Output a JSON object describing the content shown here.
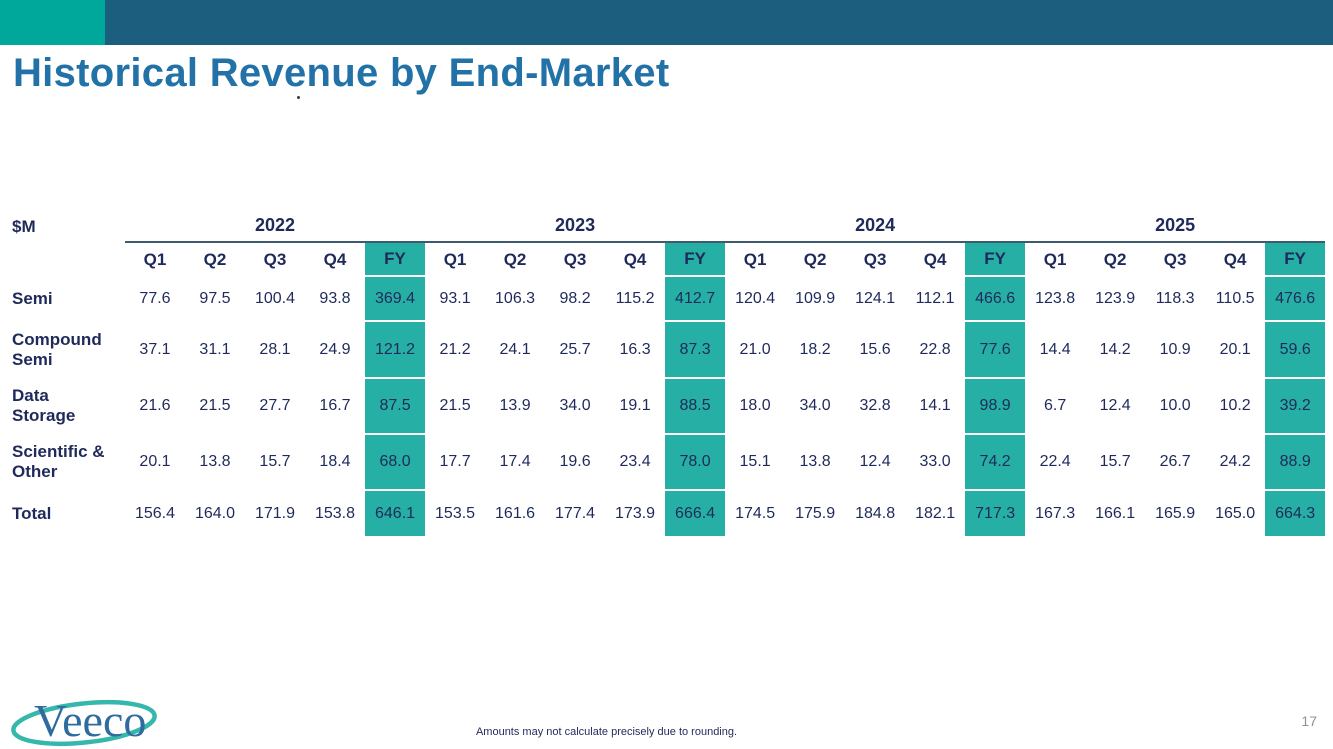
{
  "slide": {
    "title": "Historical Revenue by End-Market",
    "footnote": "Amounts may not calculate precisely due to rounding.",
    "page_number": "17",
    "logo_text": "Veeco"
  },
  "colors": {
    "header_bar_teal": "#00a79b",
    "header_bar_blue": "#1b5e7e",
    "fy_highlight_teal": "#26b0a5",
    "navy_text": "#1f2a5b",
    "title_blue": "#2272a7",
    "year_rule": "#3d5a6e",
    "logo_blue": "#2e6b9e",
    "logo_swoosh_teal": "#36b7ab",
    "page_number_gray": "#8f9193"
  },
  "chart_data": {
    "type": "table",
    "title": "Historical Revenue by End-Market",
    "units": "$M",
    "years": [
      "2022",
      "2023",
      "2024",
      "2025"
    ],
    "quarter_columns": [
      "Q1",
      "Q2",
      "Q3",
      "Q4",
      "FY"
    ],
    "fy_column_highlighted": true,
    "rows": [
      {
        "label": "Semi",
        "label_lines": [
          "Semi"
        ],
        "values_by_year": [
          [
            77.6,
            97.5,
            100.4,
            93.8,
            369.4
          ],
          [
            93.1,
            106.3,
            98.2,
            115.2,
            412.7
          ],
          [
            120.4,
            109.9,
            124.1,
            112.1,
            466.6
          ],
          [
            123.8,
            123.9,
            118.3,
            110.5,
            476.6
          ]
        ]
      },
      {
        "label": "Compound Semi",
        "label_lines": [
          "Compound",
          "Semi"
        ],
        "values_by_year": [
          [
            37.1,
            31.1,
            28.1,
            24.9,
            121.2
          ],
          [
            21.2,
            24.1,
            25.7,
            16.3,
            87.3
          ],
          [
            21.0,
            18.2,
            15.6,
            22.8,
            77.6
          ],
          [
            14.4,
            14.2,
            10.9,
            20.1,
            59.6
          ]
        ]
      },
      {
        "label": "Data Storage",
        "label_lines": [
          "Data",
          "Storage"
        ],
        "values_by_year": [
          [
            21.6,
            21.5,
            27.7,
            16.7,
            87.5
          ],
          [
            21.5,
            13.9,
            34.0,
            19.1,
            88.5
          ],
          [
            18.0,
            34.0,
            32.8,
            14.1,
            98.9
          ],
          [
            6.7,
            12.4,
            10.0,
            10.2,
            39.2
          ]
        ]
      },
      {
        "label": "Scientific & Other",
        "label_lines": [
          "Scientific &",
          "Other"
        ],
        "values_by_year": [
          [
            20.1,
            13.8,
            15.7,
            18.4,
            68.0
          ],
          [
            17.7,
            17.4,
            19.6,
            23.4,
            78.0
          ],
          [
            15.1,
            13.8,
            12.4,
            33.0,
            74.2
          ],
          [
            22.4,
            15.7,
            26.7,
            24.2,
            88.9
          ]
        ]
      },
      {
        "label": "Total",
        "label_lines": [
          "Total"
        ],
        "values_by_year": [
          [
            156.4,
            164.0,
            171.9,
            153.8,
            646.1
          ],
          [
            153.5,
            161.6,
            177.4,
            173.9,
            666.4
          ],
          [
            174.5,
            175.9,
            184.8,
            182.1,
            717.3
          ],
          [
            167.3,
            166.1,
            165.9,
            165.0,
            664.3
          ]
        ]
      }
    ]
  }
}
